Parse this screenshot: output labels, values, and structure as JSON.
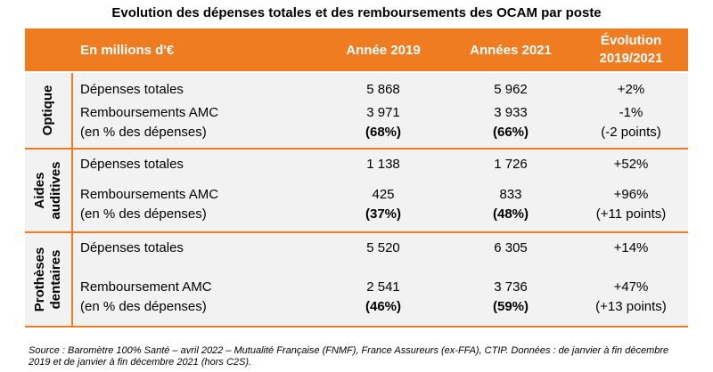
{
  "title": "Evolution des dépenses totales et des remboursements des OCAM par poste",
  "header": {
    "unit": "En millions d'€",
    "col_2019": "Année 2019",
    "col_2021": "Années 2021",
    "col_evol_line1": "Évolution",
    "col_evol_line2": "2019/2021"
  },
  "groups": [
    {
      "label": "Optique",
      "rows": [
        {
          "label": "Dépenses totales",
          "v2019": "5 868",
          "v2021": "5 962",
          "evol": "+2%"
        },
        {
          "label": "Remboursements AMC",
          "v2019": "3 971",
          "v2021": "3 933",
          "evol": "-1%"
        },
        {
          "label": "(en % des dépenses)",
          "v2019": "(68%)",
          "v2021": "(66%)",
          "evol": "(-2 points)"
        }
      ]
    },
    {
      "label_line1": "Aides",
      "label_line2": "auditives",
      "rows": [
        {
          "label": "Dépenses totales",
          "v2019": "1 138",
          "v2021": "1 726",
          "evol": "+52%"
        },
        {
          "label": "Remboursements AMC",
          "v2019": "425",
          "v2021": "833",
          "evol": "+96%"
        },
        {
          "label": "(en % des dépenses)",
          "v2019": "(37%)",
          "v2021": "(48%)",
          "evol": "(+11 points)"
        }
      ]
    },
    {
      "label_line1": "Prothèses",
      "label_line2": "dentaires",
      "rows": [
        {
          "label": "Dépenses totales",
          "v2019": "5 520",
          "v2021": "6 305",
          "evol": "+14%"
        },
        {
          "label": "Remboursement AMC",
          "v2019": "2 541",
          "v2021": "3 736",
          "evol": "+47%"
        },
        {
          "label": "(en % des dépenses)",
          "v2019": "(46%)",
          "v2021": "(59%)",
          "evol": "(+13 points)"
        }
      ]
    }
  ],
  "source": "Source : Baromètre 100% Santé – avril 2022 – Mutualité Française (FNMF), France Assureurs (ex-FFA), CTIP. Données : de janvier à fin décembre 2019 et de janvier à fin décembre 2021 (hors C2S)."
}
